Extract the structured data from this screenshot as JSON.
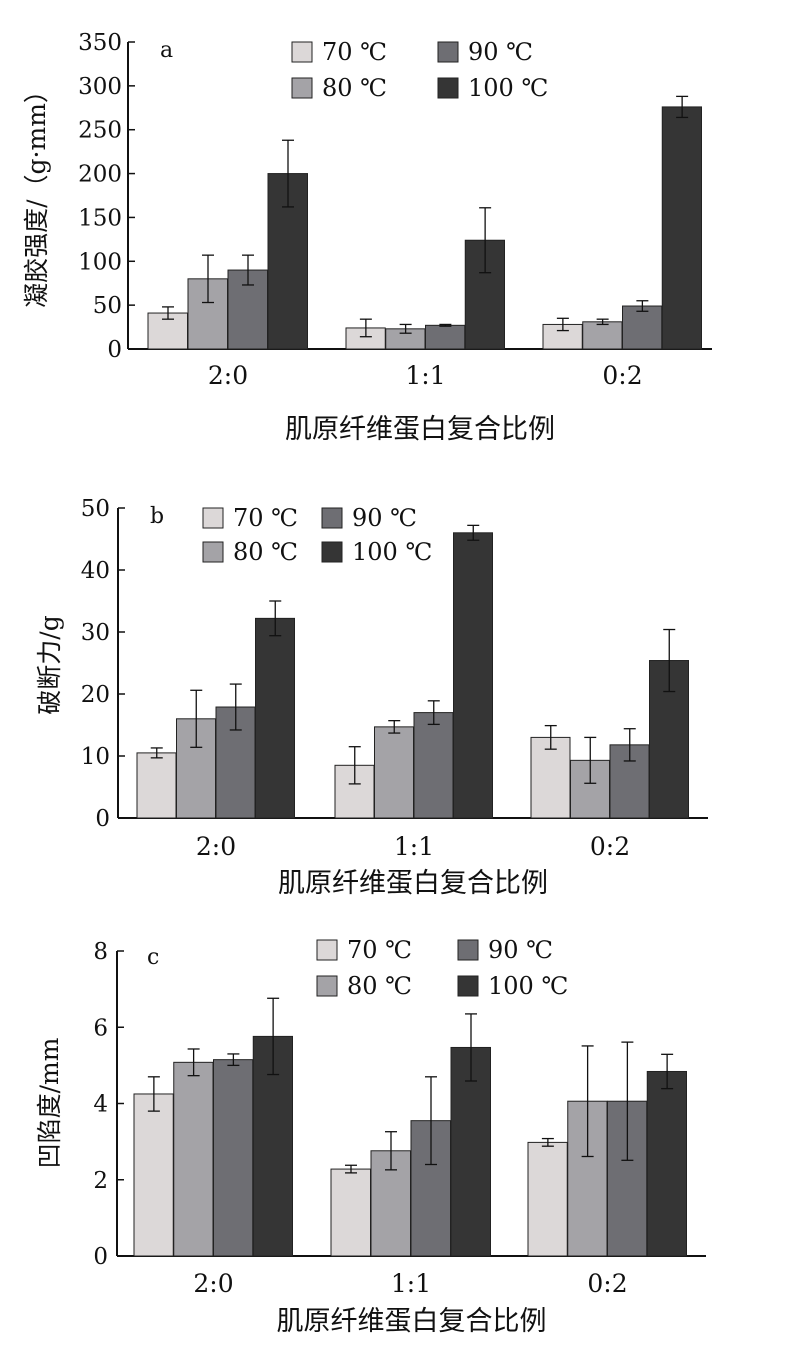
{
  "series_colors": [
    "#dcd8d8",
    "#a4a3a7",
    "#6e6e73",
    "#353535"
  ],
  "legend": [
    "70 ℃",
    "80 ℃",
    "90 ℃",
    "100 ℃"
  ],
  "chart_data": [
    {
      "type": "bar",
      "panel": "a",
      "categories": [
        "2:0",
        "1:1",
        "0:2"
      ],
      "series": [
        {
          "name": "70 ℃",
          "values": [
            41,
            24,
            28
          ],
          "errors": [
            7,
            10,
            7
          ]
        },
        {
          "name": "80 ℃",
          "values": [
            80,
            23,
            31
          ],
          "errors": [
            27,
            5,
            3
          ]
        },
        {
          "name": "90 ℃",
          "values": [
            90,
            27,
            49
          ],
          "errors": [
            17,
            1,
            6
          ]
        },
        {
          "name": "100 ℃",
          "values": [
            200,
            124,
            276
          ],
          "errors": [
            38,
            37,
            12
          ]
        }
      ],
      "xlabel": "肌原纤维蛋白复合比例",
      "ylabel": "凝胶强度/（g·mm）",
      "ylim": [
        0,
        350
      ],
      "yticks": [
        "0",
        "50",
        "100",
        "150",
        "200",
        "250",
        "300",
        "350"
      ],
      "legend_position": "top"
    },
    {
      "type": "bar",
      "panel": "b",
      "categories": [
        "2:0",
        "1:1",
        "0:2"
      ],
      "series": [
        {
          "name": "70 ℃",
          "values": [
            10.5,
            8.5,
            13
          ],
          "errors": [
            0.8,
            3,
            1.9
          ]
        },
        {
          "name": "80 ℃",
          "values": [
            16,
            14.7,
            9.3
          ],
          "errors": [
            4.6,
            1,
            3.7
          ]
        },
        {
          "name": "90 ℃",
          "values": [
            17.9,
            17,
            11.8
          ],
          "errors": [
            3.7,
            1.9,
            2.6
          ]
        },
        {
          "name": "100 ℃",
          "values": [
            32.2,
            46,
            25.4
          ],
          "errors": [
            2.8,
            1.2,
            5
          ]
        }
      ],
      "xlabel": "肌原纤维蛋白复合比例",
      "ylabel": "破断力/g",
      "ylim": [
        0,
        50
      ],
      "yticks": [
        "0",
        "10",
        "20",
        "30",
        "40",
        "50"
      ],
      "legend_position": "top"
    },
    {
      "type": "bar",
      "panel": "c",
      "categories": [
        "2:0",
        "1:1",
        "0:2"
      ],
      "series": [
        {
          "name": "70 ℃",
          "values": [
            4.25,
            2.28,
            2.98
          ],
          "errors": [
            0.45,
            0.1,
            0.1
          ]
        },
        {
          "name": "80 ℃",
          "values": [
            5.08,
            2.76,
            4.06
          ],
          "errors": [
            0.35,
            0.5,
            1.45
          ]
        },
        {
          "name": "90 ℃",
          "values": [
            5.15,
            3.55,
            4.06
          ],
          "errors": [
            0.15,
            1.15,
            1.55
          ]
        },
        {
          "name": "100 ℃",
          "values": [
            5.76,
            5.47,
            4.84
          ],
          "errors": [
            1,
            0.88,
            0.45
          ]
        }
      ],
      "xlabel": "肌原纤维蛋白复合比例",
      "ylabel": "凹陷度/mm",
      "ylim": [
        0,
        8
      ],
      "yticks": [
        "0",
        "2",
        "4",
        "6",
        "8"
      ],
      "legend_position": "top"
    }
  ]
}
